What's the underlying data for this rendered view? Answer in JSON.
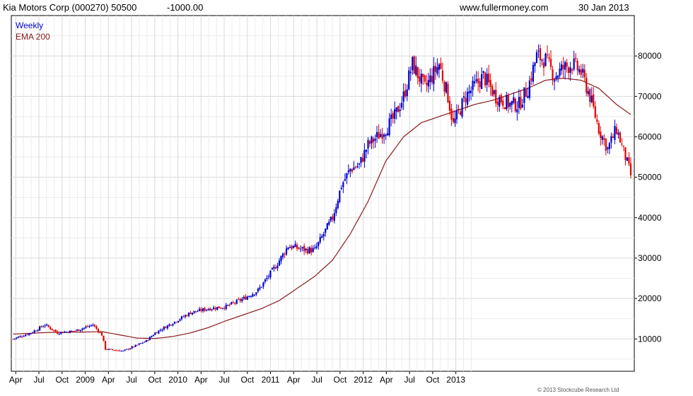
{
  "header": {
    "title": "Kia Motors Corp (000270) 50500",
    "change": "-1000.00",
    "site": "www.fullermoney.com",
    "date": "30 Jan 2013"
  },
  "legend": {
    "weekly": "Weekly",
    "ema": "EMA 200"
  },
  "copyright": "© 2013 Stockcube Research Ltd",
  "colors": {
    "up": "#0000cc",
    "down": "#e00000",
    "ema": "#8b1a1a",
    "grid": "#d9d9d9",
    "change": "#cc0000"
  },
  "chart_data": {
    "type": "candlestick",
    "period": "weekly",
    "ylim": [
      2000,
      90000
    ],
    "yticks": [
      10000,
      20000,
      30000,
      40000,
      50000,
      60000,
      70000,
      80000
    ],
    "ytick_labels": [
      "10000",
      "20000",
      "30000",
      "40000",
      "50000",
      "60000",
      "70000",
      "80000"
    ],
    "xticks": [
      "Apr",
      "Jul",
      "Oct",
      "2009",
      "Apr",
      "Jul",
      "Oct",
      "2010",
      "Apr",
      "Jul",
      "Oct",
      "2011",
      "Apr",
      "Jul",
      "Oct",
      "2012",
      "Apr",
      "Jul",
      "Oct",
      "2013"
    ],
    "price_path": [
      [
        0,
        10000
      ],
      [
        10,
        11500
      ],
      [
        18,
        13500
      ],
      [
        25,
        11500
      ],
      [
        35,
        12000
      ],
      [
        45,
        13500
      ],
      [
        50,
        11000
      ],
      [
        52,
        7500
      ],
      [
        62,
        7000
      ],
      [
        70,
        8500
      ],
      [
        75,
        9500
      ],
      [
        80,
        11500
      ],
      [
        90,
        14000
      ],
      [
        100,
        16500
      ],
      [
        110,
        17500
      ],
      [
        120,
        18000
      ],
      [
        130,
        20000
      ],
      [
        138,
        22000
      ],
      [
        148,
        28000
      ],
      [
        155,
        33000
      ],
      [
        165,
        32000
      ],
      [
        170,
        32000
      ],
      [
        180,
        40000
      ],
      [
        185,
        48000
      ],
      [
        190,
        52000
      ],
      [
        195,
        53000
      ],
      [
        200,
        58000
      ],
      [
        205,
        60000
      ],
      [
        210,
        62000
      ],
      [
        215,
        65000
      ],
      [
        220,
        70000
      ],
      [
        225,
        78000
      ],
      [
        232,
        72000
      ],
      [
        240,
        78000
      ],
      [
        245,
        70000
      ],
      [
        248,
        63000
      ],
      [
        255,
        70000
      ],
      [
        265,
        75000
      ],
      [
        272,
        70000
      ],
      [
        280,
        68000
      ],
      [
        285,
        68000
      ],
      [
        290,
        72000
      ],
      [
        295,
        80000
      ],
      [
        300,
        79000
      ],
      [
        305,
        75000
      ],
      [
        310,
        77000
      ],
      [
        315,
        78000
      ],
      [
        320,
        76000
      ],
      [
        325,
        70000
      ],
      [
        330,
        62000
      ],
      [
        335,
        57000
      ],
      [
        340,
        62000
      ],
      [
        345,
        55000
      ],
      [
        348,
        50500
      ]
    ],
    "ema_path": [
      [
        0,
        11200
      ],
      [
        20,
        11600
      ],
      [
        40,
        11700
      ],
      [
        50,
        11800
      ],
      [
        60,
        11000
      ],
      [
        70,
        10200
      ],
      [
        80,
        10100
      ],
      [
        90,
        10600
      ],
      [
        100,
        11500
      ],
      [
        110,
        12800
      ],
      [
        120,
        14500
      ],
      [
        130,
        16000
      ],
      [
        140,
        17500
      ],
      [
        150,
        19500
      ],
      [
        160,
        22500
      ],
      [
        170,
        25500
      ],
      [
        180,
        29500
      ],
      [
        190,
        36000
      ],
      [
        200,
        44000
      ],
      [
        210,
        54000
      ],
      [
        220,
        60000
      ],
      [
        230,
        63500
      ],
      [
        240,
        65000
      ],
      [
        250,
        66500
      ],
      [
        260,
        68000
      ],
      [
        270,
        69000
      ],
      [
        280,
        70500
      ],
      [
        290,
        72000
      ],
      [
        300,
        74000
      ],
      [
        310,
        74500
      ],
      [
        320,
        74000
      ],
      [
        330,
        72000
      ],
      [
        340,
        68000
      ],
      [
        348,
        65500
      ]
    ]
  }
}
